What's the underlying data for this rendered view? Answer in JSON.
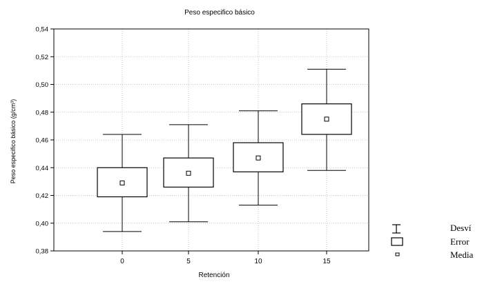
{
  "chart_data": {
    "type": "box",
    "title": "Peso especifico básico",
    "xlabel": "Retención",
    "ylabel": "Peso especifico básico (g/cm³)",
    "categories": [
      "0",
      "5",
      "10",
      "15"
    ],
    "ylim": [
      0.38,
      0.54
    ],
    "yticks": [
      "0,38",
      "0,40",
      "0,42",
      "0,44",
      "0,46",
      "0,48",
      "0,50",
      "0,52",
      "0,54"
    ],
    "grid": true,
    "legend_position": "bottom-right",
    "legend": [
      "Desví",
      "Error",
      "Media"
    ],
    "boxes": [
      {
        "category": "0",
        "mean": 0.429,
        "error_low": 0.419,
        "error_high": 0.44,
        "sd_low": 0.394,
        "sd_high": 0.464
      },
      {
        "category": "5",
        "mean": 0.436,
        "error_low": 0.426,
        "error_high": 0.447,
        "sd_low": 0.401,
        "sd_high": 0.471
      },
      {
        "category": "10",
        "mean": 0.447,
        "error_low": 0.437,
        "error_high": 0.458,
        "sd_low": 0.413,
        "sd_high": 0.481
      },
      {
        "category": "15",
        "mean": 0.475,
        "error_low": 0.464,
        "error_high": 0.486,
        "sd_low": 0.438,
        "sd_high": 0.511
      }
    ]
  }
}
